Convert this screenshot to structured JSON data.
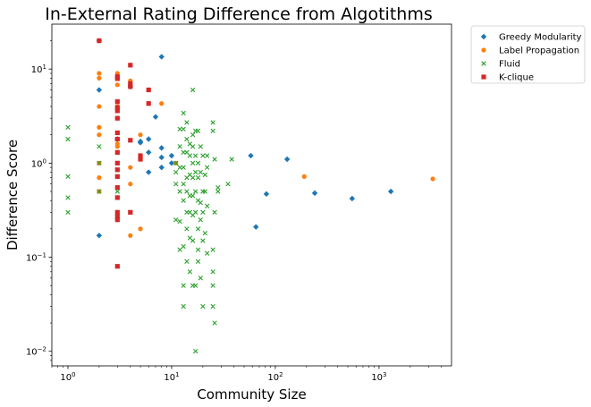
{
  "chart_data": {
    "type": "scatter",
    "title": "In-External Rating Difference from Algotithms",
    "xlabel": "Community Size",
    "ylabel": "Difference Score",
    "xscale": "log",
    "yscale": "log",
    "xlim": [
      0.7,
      5000
    ],
    "ylim": [
      0.007,
      30
    ],
    "grid": false,
    "legend_position": "outside-top-right",
    "x_ticks": [
      {
        "value": 1,
        "base": "10",
        "exp": "0"
      },
      {
        "value": 10,
        "base": "10",
        "exp": "1"
      },
      {
        "value": 100,
        "base": "10",
        "exp": "2"
      },
      {
        "value": 1000,
        "base": "10",
        "exp": "3"
      }
    ],
    "y_ticks": [
      {
        "value": 0.01,
        "base": "10",
        "exp": "−2"
      },
      {
        "value": 0.1,
        "base": "10",
        "exp": "−1"
      },
      {
        "value": 1,
        "base": "10",
        "exp": "0"
      },
      {
        "value": 10,
        "base": "10",
        "exp": "1"
      }
    ],
    "series": [
      {
        "name": "Greedy Modularity",
        "color": "#1f77b4",
        "marker": "diamond",
        "points": [
          [
            2,
            20
          ],
          [
            2,
            6
          ],
          [
            2,
            0.17
          ],
          [
            3,
            1.8
          ],
          [
            4,
            6.5
          ],
          [
            5,
            1.7
          ],
          [
            5,
            1.65
          ],
          [
            6,
            1.8
          ],
          [
            6,
            1.3
          ],
          [
            6,
            0.8
          ],
          [
            7,
            3.1
          ],
          [
            8,
            13.5
          ],
          [
            8,
            1.45
          ],
          [
            8,
            1.15
          ],
          [
            8,
            0.9
          ],
          [
            10,
            1.2
          ],
          [
            10,
            1.0
          ],
          [
            58,
            1.2
          ],
          [
            65,
            0.21
          ],
          [
            82,
            0.47
          ],
          [
            130,
            1.1
          ],
          [
            240,
            0.48
          ],
          [
            550,
            0.42
          ],
          [
            1300,
            0.5
          ]
        ]
      },
      {
        "name": "Label Propagation",
        "color": "#ff7f0e",
        "marker": "circle",
        "points": [
          [
            2,
            20
          ],
          [
            2,
            9
          ],
          [
            2,
            8
          ],
          [
            2,
            4
          ],
          [
            2,
            2.4
          ],
          [
            2,
            2
          ],
          [
            2,
            1
          ],
          [
            2,
            0.7
          ],
          [
            2,
            0.5
          ],
          [
            3,
            9
          ],
          [
            3,
            6.8
          ],
          [
            3,
            4
          ],
          [
            3,
            3
          ],
          [
            3,
            1.6
          ],
          [
            3,
            1.5
          ],
          [
            4,
            7.5
          ],
          [
            4,
            0.9
          ],
          [
            4,
            0.6
          ],
          [
            4,
            0.17
          ],
          [
            5,
            2
          ],
          [
            5,
            1.1
          ],
          [
            5,
            0.2
          ],
          [
            8,
            4.3
          ],
          [
            11,
            1.0
          ],
          [
            190,
            0.72
          ],
          [
            3300,
            0.68
          ]
        ]
      },
      {
        "name": "Fluid",
        "color": "#2ca02c",
        "marker": "x",
        "points": [
          [
            1,
            2.4
          ],
          [
            1,
            1.8
          ],
          [
            1,
            0.72
          ],
          [
            1,
            0.43
          ],
          [
            1,
            0.3
          ],
          [
            2,
            1.5
          ],
          [
            2,
            1.0
          ],
          [
            2,
            0.5
          ],
          [
            3,
            0.5
          ],
          [
            3,
            1.0
          ],
          [
            4,
            0.3
          ],
          [
            11,
            1.0
          ],
          [
            11,
            0.8
          ],
          [
            11,
            0.6
          ],
          [
            11,
            0.25
          ],
          [
            12,
            2.3
          ],
          [
            12,
            1.5
          ],
          [
            12,
            0.9
          ],
          [
            12,
            0.5
          ],
          [
            12,
            0.24
          ],
          [
            12,
            0.12
          ],
          [
            13,
            3.4
          ],
          [
            13,
            2.3
          ],
          [
            13,
            1.3
          ],
          [
            13,
            0.9
          ],
          [
            13,
            0.6
          ],
          [
            13,
            0.4
          ],
          [
            13,
            0.13
          ],
          [
            13,
            0.05
          ],
          [
            13,
            0.03
          ],
          [
            14,
            2.7
          ],
          [
            14,
            1.8
          ],
          [
            14,
            1.3
          ],
          [
            14,
            0.7
          ],
          [
            14,
            0.5
          ],
          [
            14,
            0.3
          ],
          [
            14,
            0.2
          ],
          [
            14,
            0.09
          ],
          [
            15,
            1.6
          ],
          [
            15,
            1.2
          ],
          [
            15,
            0.75
          ],
          [
            15,
            0.45
          ],
          [
            15,
            0.3
          ],
          [
            15,
            0.16
          ],
          [
            15,
            0.07
          ],
          [
            16,
            6
          ],
          [
            16,
            2
          ],
          [
            16,
            1.5
          ],
          [
            16,
            1.0
          ],
          [
            16,
            0.7
          ],
          [
            16,
            0.45
          ],
          [
            16,
            0.28
          ],
          [
            16,
            0.15
          ],
          [
            16,
            0.05
          ],
          [
            17,
            2.2
          ],
          [
            17,
            1.2
          ],
          [
            17,
            0.8
          ],
          [
            17,
            0.5
          ],
          [
            17,
            0.3
          ],
          [
            17,
            0.05
          ],
          [
            17,
            0.01
          ],
          [
            18,
            2.2
          ],
          [
            18,
            1.0
          ],
          [
            18,
            0.7
          ],
          [
            18,
            0.4
          ],
          [
            18,
            0.2
          ],
          [
            18,
            0.12
          ],
          [
            18,
            0.09
          ],
          [
            19,
            1.5
          ],
          [
            19,
            0.8
          ],
          [
            19,
            0.38
          ],
          [
            19,
            0.25
          ],
          [
            19,
            0.06
          ],
          [
            20,
            1.2
          ],
          [
            20,
            0.5
          ],
          [
            20,
            0.3
          ],
          [
            20,
            0.15
          ],
          [
            20,
            0.03
          ],
          [
            21,
            0.75
          ],
          [
            21,
            0.5
          ],
          [
            21,
            0.18
          ],
          [
            22,
            1.2
          ],
          [
            22,
            0.9
          ],
          [
            22,
            0.35
          ],
          [
            22,
            0.11
          ],
          [
            25,
            2.7
          ],
          [
            25,
            2.2
          ],
          [
            25,
            0.12
          ],
          [
            25,
            0.07
          ],
          [
            25,
            0.05
          ],
          [
            25,
            0.03
          ],
          [
            26,
            1.1
          ],
          [
            26,
            0.3
          ],
          [
            26,
            0.02
          ],
          [
            28,
            0.55
          ],
          [
            28,
            0.5
          ],
          [
            35,
            0.6
          ],
          [
            38,
            1.1
          ]
        ]
      },
      {
        "name": "K-clique",
        "color": "#d62728",
        "marker": "square",
        "points": [
          [
            2,
            20
          ],
          [
            3,
            8.3
          ],
          [
            3,
            7.9
          ],
          [
            3,
            4.5
          ],
          [
            3,
            3.9
          ],
          [
            3,
            3.6
          ],
          [
            3,
            3
          ],
          [
            3,
            2.1
          ],
          [
            3,
            1.8
          ],
          [
            3,
            1.3
          ],
          [
            3,
            1.0
          ],
          [
            3,
            0.85
          ],
          [
            3,
            0.72
          ],
          [
            3,
            0.55
          ],
          [
            3,
            0.43
          ],
          [
            3,
            0.3
          ],
          [
            3,
            0.27
          ],
          [
            3,
            0.25
          ],
          [
            3,
            0.08
          ],
          [
            4,
            11
          ],
          [
            4,
            7
          ],
          [
            4,
            6.5
          ],
          [
            4,
            1.75
          ],
          [
            4,
            0.3
          ],
          [
            5,
            1.2
          ],
          [
            5,
            1.1
          ],
          [
            6,
            6
          ],
          [
            6,
            4.3
          ]
        ]
      }
    ]
  }
}
